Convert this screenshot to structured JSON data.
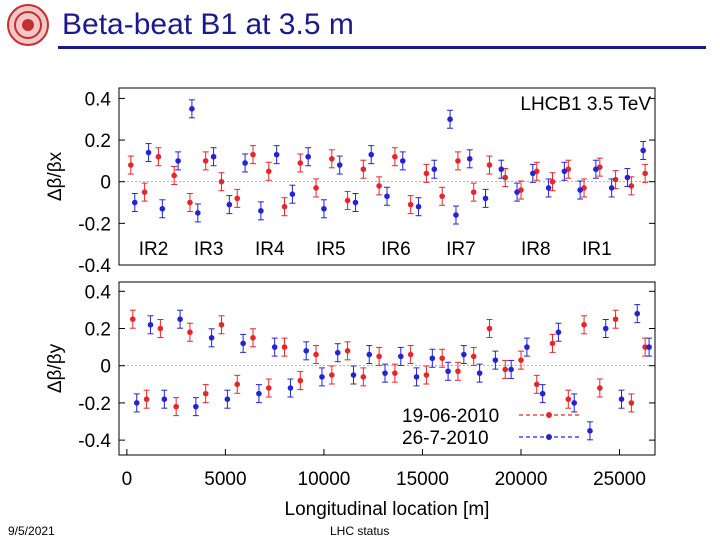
{
  "slide": {
    "title": "Beta-beat B1 at 3.5 m",
    "footer_date": "9/5/2021",
    "footer_center": "LHC status"
  },
  "colors": {
    "title": "#1a1a8c",
    "series_red": "#e8262a",
    "series_blue": "#2424d6"
  },
  "chart_data": [
    {
      "type": "scatter",
      "annotation": "LHCB1 3.5 TeV",
      "ylabel": "Δβ/βx",
      "ylim": [
        -0.4,
        0.45
      ],
      "yticks": [
        "0.4",
        "0.2",
        "0",
        "-0.2",
        "-0.4"
      ],
      "ytick_values": [
        0.4,
        0.2,
        0,
        -0.2,
        -0.4
      ],
      "xlim": [
        -400,
        26800
      ],
      "ir_labels": [
        {
          "text": "IR2",
          "x": 600
        },
        {
          "text": "IR3",
          "x": 3400
        },
        {
          "text": "IR4",
          "x": 6500
        },
        {
          "text": "IR5",
          "x": 9600
        },
        {
          "text": "IR6",
          "x": 12900
        },
        {
          "text": "IR7",
          "x": 16200
        },
        {
          "text": "IR8",
          "x": 20000
        },
        {
          "text": "IR1",
          "x": 23100
        }
      ],
      "series": [
        {
          "name": "19-06-2010",
          "points": [
            [
              200,
              0.08
            ],
            [
              900,
              -0.05
            ],
            [
              1600,
              0.12
            ],
            [
              2400,
              0.03
            ],
            [
              3200,
              -0.1
            ],
            [
              4000,
              0.1
            ],
            [
              4800,
              0.0
            ],
            [
              5600,
              -0.08
            ],
            [
              6400,
              0.13
            ],
            [
              7200,
              0.05
            ],
            [
              8000,
              -0.12
            ],
            [
              8800,
              0.09
            ],
            [
              9600,
              -0.03
            ],
            [
              10400,
              0.11
            ],
            [
              11200,
              -0.09
            ],
            [
              12000,
              0.06
            ],
            [
              12800,
              -0.02
            ],
            [
              13600,
              0.12
            ],
            [
              14400,
              -0.11
            ],
            [
              15200,
              0.04
            ],
            [
              16000,
              -0.07
            ],
            [
              16800,
              0.1
            ],
            [
              17600,
              -0.05
            ],
            [
              18400,
              0.08
            ],
            [
              19200,
              0.02
            ],
            [
              20000,
              -0.04
            ],
            [
              20800,
              0.05
            ],
            [
              21600,
              0.0
            ],
            [
              22400,
              0.06
            ],
            [
              23200,
              -0.03
            ],
            [
              24000,
              0.07
            ],
            [
              24800,
              0.01
            ],
            [
              25600,
              -0.02
            ],
            [
              26300,
              0.04
            ]
          ]
        },
        {
          "name": "26-7-2010",
          "points": [
            [
              400,
              -0.1
            ],
            [
              1100,
              0.14
            ],
            [
              1800,
              -0.13
            ],
            [
              2600,
              0.1
            ],
            [
              3300,
              0.35
            ],
            [
              3600,
              -0.15
            ],
            [
              4400,
              0.12
            ],
            [
              5200,
              -0.11
            ],
            [
              6000,
              0.09
            ],
            [
              6800,
              -0.14
            ],
            [
              7600,
              0.13
            ],
            [
              8400,
              -0.06
            ],
            [
              9200,
              0.12
            ],
            [
              10000,
              -0.13
            ],
            [
              10800,
              0.08
            ],
            [
              11600,
              -0.1
            ],
            [
              12400,
              0.13
            ],
            [
              13200,
              -0.07
            ],
            [
              14000,
              0.1
            ],
            [
              14800,
              -0.12
            ],
            [
              15600,
              0.06
            ],
            [
              16400,
              0.3
            ],
            [
              16700,
              -0.16
            ],
            [
              17400,
              0.11
            ],
            [
              18200,
              -0.08
            ],
            [
              19000,
              0.06
            ],
            [
              19800,
              -0.05
            ],
            [
              20600,
              0.04
            ],
            [
              21400,
              -0.03
            ],
            [
              22200,
              0.05
            ],
            [
              23000,
              -0.04
            ],
            [
              23800,
              0.06
            ],
            [
              24600,
              -0.03
            ],
            [
              25400,
              0.02
            ],
            [
              26200,
              0.15
            ]
          ]
        }
      ]
    },
    {
      "type": "scatter",
      "ylabel": "Δβ/βy",
      "xlabel": "Longitudinal location [m]",
      "ylim": [
        -0.48,
        0.45
      ],
      "yticks": [
        "0.4",
        "0.2",
        "0",
        "-0.2",
        "-0.4"
      ],
      "ytick_values": [
        0.4,
        0.2,
        0,
        -0.2,
        -0.4
      ],
      "xlim": [
        -400,
        26800
      ],
      "xticks": [
        "0",
        "5000",
        "10000",
        "15000",
        "20000",
        "25000"
      ],
      "xtick_values": [
        0,
        5000,
        10000,
        15000,
        20000,
        25000
      ],
      "series": [
        {
          "name": "19-06-2010",
          "points": [
            [
              300,
              0.25
            ],
            [
              1000,
              -0.18
            ],
            [
              1700,
              0.2
            ],
            [
              2500,
              -0.22
            ],
            [
              3200,
              0.18
            ],
            [
              4000,
              -0.15
            ],
            [
              4800,
              0.22
            ],
            [
              5600,
              -0.1
            ],
            [
              6400,
              0.15
            ],
            [
              7200,
              -0.12
            ],
            [
              8000,
              0.1
            ],
            [
              8800,
              -0.08
            ],
            [
              9600,
              0.06
            ],
            [
              10400,
              -0.05
            ],
            [
              11200,
              0.08
            ],
            [
              12000,
              -0.06
            ],
            [
              12800,
              0.05
            ],
            [
              13600,
              -0.04
            ],
            [
              14400,
              0.06
            ],
            [
              15200,
              -0.05
            ],
            [
              16000,
              0.04
            ],
            [
              16800,
              -0.03
            ],
            [
              17600,
              0.05
            ],
            [
              18400,
              0.2
            ],
            [
              19200,
              -0.02
            ],
            [
              20000,
              0.03
            ],
            [
              20800,
              -0.1
            ],
            [
              21600,
              0.12
            ],
            [
              22400,
              -0.18
            ],
            [
              23200,
              0.22
            ],
            [
              24000,
              -0.12
            ],
            [
              24800,
              0.25
            ],
            [
              25600,
              -0.2
            ],
            [
              26300,
              0.1
            ]
          ]
        },
        {
          "name": "26-7-2010",
          "points": [
            [
              500,
              -0.2
            ],
            [
              1200,
              0.22
            ],
            [
              1900,
              -0.18
            ],
            [
              2700,
              0.25
            ],
            [
              3500,
              -0.22
            ],
            [
              4300,
              0.15
            ],
            [
              5100,
              -0.18
            ],
            [
              5900,
              0.12
            ],
            [
              6700,
              -0.15
            ],
            [
              7500,
              0.1
            ],
            [
              8300,
              -0.12
            ],
            [
              9100,
              0.08
            ],
            [
              9900,
              -0.06
            ],
            [
              10700,
              0.07
            ],
            [
              11500,
              -0.05
            ],
            [
              12300,
              0.06
            ],
            [
              13100,
              -0.04
            ],
            [
              13900,
              0.05
            ],
            [
              14700,
              -0.06
            ],
            [
              15500,
              0.04
            ],
            [
              16300,
              -0.03
            ],
            [
              17100,
              0.06
            ],
            [
              17900,
              -0.04
            ],
            [
              18700,
              0.03
            ],
            [
              19500,
              -0.02
            ],
            [
              20300,
              0.1
            ],
            [
              21100,
              -0.15
            ],
            [
              21900,
              0.18
            ],
            [
              22700,
              -0.2
            ],
            [
              23500,
              -0.35
            ],
            [
              24300,
              0.2
            ],
            [
              25100,
              -0.18
            ],
            [
              25900,
              0.28
            ],
            [
              26500,
              0.1
            ]
          ]
        }
      ]
    }
  ]
}
